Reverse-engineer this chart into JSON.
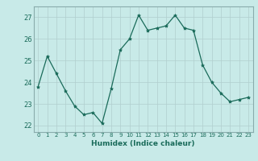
{
  "x": [
    0,
    1,
    2,
    3,
    4,
    5,
    6,
    7,
    8,
    9,
    10,
    11,
    12,
    13,
    14,
    15,
    16,
    17,
    18,
    19,
    20,
    21,
    22,
    23
  ],
  "y": [
    23.8,
    25.2,
    24.4,
    23.6,
    22.9,
    22.5,
    22.6,
    22.1,
    23.7,
    25.5,
    26.0,
    27.1,
    26.4,
    26.5,
    26.6,
    27.1,
    26.5,
    26.4,
    24.8,
    24.0,
    23.5,
    23.1,
    23.2,
    23.3
  ],
  "xlabel": "Humidex (Indice chaleur)",
  "ylim": [
    21.7,
    27.5
  ],
  "xlim": [
    -0.5,
    23.5
  ],
  "yticks": [
    22,
    23,
    24,
    25,
    26,
    27
  ],
  "xticks": [
    0,
    1,
    2,
    3,
    4,
    5,
    6,
    7,
    8,
    9,
    10,
    11,
    12,
    13,
    14,
    15,
    16,
    17,
    18,
    19,
    20,
    21,
    22,
    23
  ],
  "line_color": "#1a6b5a",
  "marker": "*",
  "marker_size": 3,
  "bg_color": "#c8eae8",
  "grid_color": "#b0cece",
  "tick_color": "#1a6b5a",
  "label_color": "#1a6b5a",
  "spine_color": "#8aacac"
}
